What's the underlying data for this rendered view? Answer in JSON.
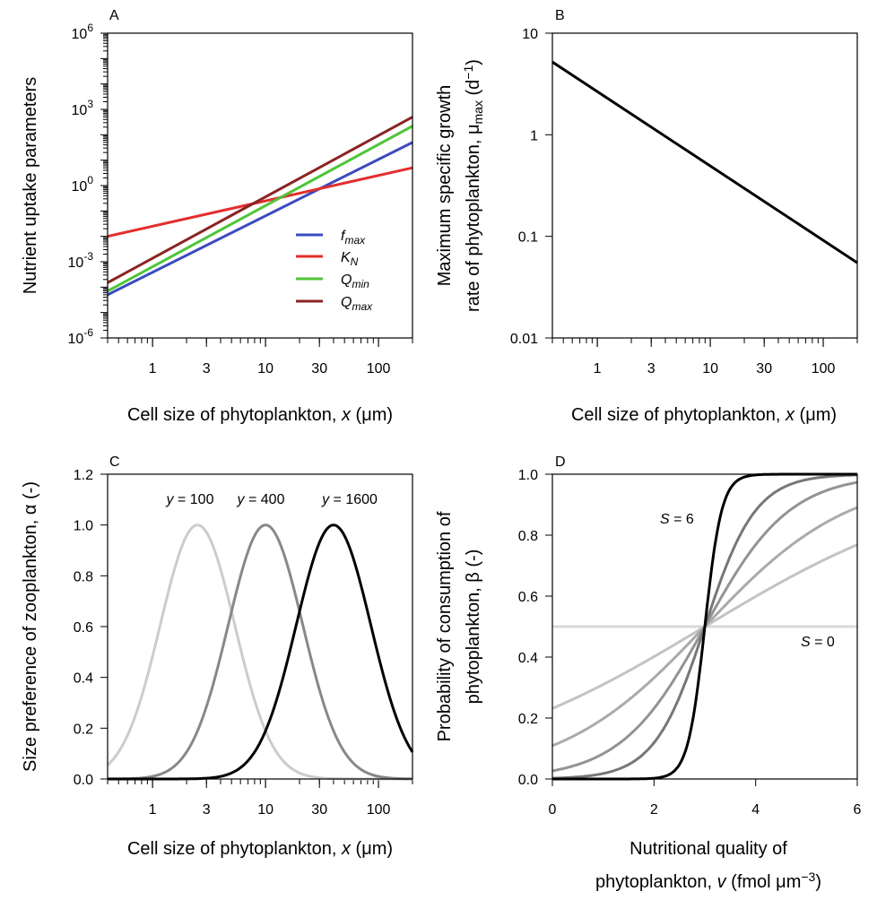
{
  "chart_data": [
    {
      "panel": "A",
      "type": "line",
      "title": "",
      "xlabel": "Cell size of phytoplankton, x (μm)",
      "ylabel": "Nutrient uptake parameters",
      "xscale": "log",
      "yscale": "log",
      "xlim": [
        0.4,
        200
      ],
      "ylim": [
        1e-06,
        1000000
      ],
      "xtick_labels": [
        "1",
        "3",
        "10",
        "30",
        "100"
      ],
      "ytick_labels": [
        "10^-6",
        "10^-3",
        "10^0",
        "10^3",
        "10^6"
      ],
      "legend": "center-right",
      "series": [
        {
          "name": "f_max",
          "color": "#3b4cc0",
          "x": [
            0.4,
            200
          ],
          "y": [
            5e-05,
            50
          ]
        },
        {
          "name": "K_N",
          "color": "#e32d2d",
          "x": [
            0.4,
            200
          ],
          "y": [
            0.01,
            5
          ]
        },
        {
          "name": "Q_min",
          "color": "#4ec538",
          "x": [
            0.4,
            200
          ],
          "y": [
            7e-05,
            220
          ]
        },
        {
          "name": "Q_max",
          "color": "#8b2323",
          "x": [
            0.4,
            200
          ],
          "y": [
            0.00015,
            500
          ]
        }
      ]
    },
    {
      "panel": "B",
      "type": "line",
      "title": "",
      "xlabel": "Cell size of phytoplankton, x (μm)",
      "ylabel": "Maximum specific growth rate of phytoplankton, μmax (d⁻¹)",
      "xscale": "log",
      "yscale": "log",
      "xlim": [
        0.4,
        200
      ],
      "ylim": [
        0.01,
        10
      ],
      "xtick_labels": [
        "1",
        "3",
        "10",
        "30",
        "100"
      ],
      "ytick_labels": [
        "0.01",
        "0.1",
        "1",
        "10"
      ],
      "series": [
        {
          "color": "#000000",
          "x": [
            0.4,
            200
          ],
          "y": [
            5.2,
            0.055
          ]
        }
      ]
    },
    {
      "panel": "C",
      "type": "line",
      "title": "",
      "xlabel": "Cell size of phytoplankton, x (μm)",
      "ylabel": "Size preference of zooplankton, α (-)",
      "xscale": "log",
      "xlim": [
        0.4,
        200
      ],
      "ylim": [
        0,
        1.2
      ],
      "xtick_labels": [
        "1",
        "3",
        "10",
        "30",
        "100"
      ],
      "ytick_labels": [
        "0.0",
        "0.2",
        "0.4",
        "0.6",
        "0.8",
        "1.0",
        "1.2"
      ],
      "series": [
        {
          "label": "y = 100",
          "color": "#cccccc",
          "peak_x": 2.5,
          "log10_sd": 0.33
        },
        {
          "label": "y = 400",
          "color": "#888888",
          "peak_x": 10,
          "log10_sd": 0.33
        },
        {
          "label": "y = 1600",
          "color": "#000000",
          "peak_x": 40,
          "log10_sd": 0.33
        }
      ]
    },
    {
      "panel": "D",
      "type": "line",
      "title": "",
      "xlabel": "Nutritional quality of phytoplankton, v (fmol μm⁻³)",
      "ylabel": "Probability of consumption of phytoplankton, β (-)",
      "xlim": [
        0,
        6
      ],
      "ylim": [
        0,
        1
      ],
      "xtick_labels": [
        "0",
        "2",
        "4",
        "6"
      ],
      "ytick_labels": [
        "0.0",
        "0.2",
        "0.4",
        "0.6",
        "0.8",
        "1.0"
      ],
      "midpoint_v": 3,
      "series": [
        {
          "S": 0,
          "color": "#d9d9d9"
        },
        {
          "S": 0.4,
          "color": "#c3c3c3"
        },
        {
          "S": 0.7,
          "color": "#aaaaaa"
        },
        {
          "S": 1.2,
          "color": "#939393"
        },
        {
          "S": 2,
          "color": "#777777"
        },
        {
          "S": 6,
          "color": "#000000"
        }
      ],
      "annotations": [
        "S = 6",
        "S = 0"
      ]
    }
  ],
  "labels": {
    "A": {
      "panel": "A",
      "x_main": "Cell size of phytoplankton, ",
      "x_var": "x",
      "x_unit": " (μm)",
      "y": "Nutrient uptake parameters"
    },
    "B": {
      "panel": "B",
      "x_main": "Cell size of phytoplankton, ",
      "x_var": "x",
      "x_unit": " (μm)",
      "y1": "Maximum specific growth",
      "y2a": "rate of phytoplankton, μ",
      "y2sub": "max",
      "y2b": " (d",
      "y2sup": "−1",
      "y2c": ")"
    },
    "C": {
      "panel": "C",
      "x_main": "Cell size of phytoplankton, ",
      "x_var": "x",
      "x_unit": " (μm)",
      "y": "Size preference of zooplankton, α (-)"
    },
    "D": {
      "panel": "D",
      "x1": "Nutritional quality of",
      "x2a": "phytoplankton, ",
      "x2var": "v",
      "x2b": " (fmol μm",
      "x2sup": "−3",
      "x2c": ")",
      "y1": "Probability of consumption of",
      "y2": "phytoplankton, β (-)"
    }
  },
  "legend_A": [
    {
      "sym": "f",
      "sub": "max"
    },
    {
      "sym": "K",
      "sub": "N"
    },
    {
      "sym": "Q",
      "sub": "min"
    },
    {
      "sym": "Q",
      "sub": "max"
    }
  ],
  "curve_labels_C": [
    "y = 100",
    "y = 400",
    "y = 1600"
  ],
  "annotations_D": [
    "S = 6",
    "S = 0"
  ]
}
